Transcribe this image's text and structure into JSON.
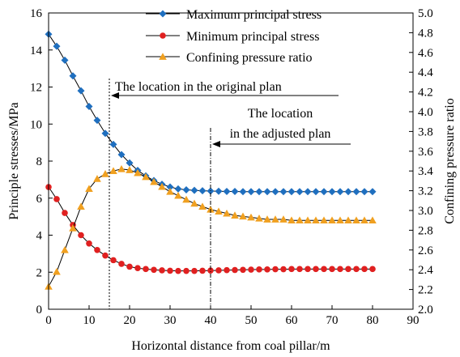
{
  "chart_data": {
    "type": "line",
    "xlabel": "Horizontal distance from coal pillar/m",
    "ylabel_left": "Principle stresses/MPa",
    "ylabel_right": "Confining pressure ratio",
    "xlim": [
      0,
      90
    ],
    "ylim_left": [
      0,
      16
    ],
    "ylim_right": [
      2.0,
      5.0
    ],
    "x_ticks": [
      0,
      10,
      20,
      30,
      40,
      50,
      60,
      70,
      80,
      90
    ],
    "y_left_ticks": [
      0,
      2,
      4,
      6,
      8,
      10,
      12,
      14,
      16
    ],
    "y_right_ticks": [
      "2.0",
      "2.2",
      "2.4",
      "2.6",
      "2.8",
      "3.0",
      "3.2",
      "3.4",
      "3.6",
      "3.8",
      "4.0",
      "4.2",
      "4.4",
      "4.6",
      "4.8",
      "5.0"
    ],
    "grid": false,
    "legend_position": "top",
    "x": [
      0,
      2,
      4,
      6,
      8,
      10,
      12,
      14,
      16,
      18,
      20,
      22,
      24,
      26,
      28,
      30,
      32,
      34,
      36,
      38,
      40,
      42,
      44,
      46,
      48,
      50,
      52,
      54,
      56,
      58,
      60,
      62,
      64,
      66,
      68,
      70,
      72,
      74,
      76,
      78,
      80
    ],
    "series": [
      {
        "name": "Maximum principal stress",
        "axis": "left",
        "color": "#1f6fbf",
        "marker": "diamond",
        "values": [
          14.85,
          14.2,
          13.45,
          12.6,
          11.8,
          10.95,
          10.2,
          9.5,
          8.9,
          8.35,
          7.9,
          7.5,
          7.2,
          6.95,
          6.75,
          6.6,
          6.5,
          6.45,
          6.42,
          6.4,
          6.38,
          6.37,
          6.36,
          6.36,
          6.35,
          6.35,
          6.35,
          6.35,
          6.35,
          6.35,
          6.35,
          6.35,
          6.35,
          6.35,
          6.35,
          6.35,
          6.35,
          6.35,
          6.35,
          6.35,
          6.35
        ]
      },
      {
        "name": "Minimum principal stress",
        "axis": "left",
        "color": "#e02020",
        "marker": "circle",
        "values": [
          6.6,
          5.95,
          5.2,
          4.55,
          4.0,
          3.55,
          3.2,
          2.9,
          2.65,
          2.45,
          2.3,
          2.22,
          2.17,
          2.13,
          2.1,
          2.08,
          2.07,
          2.07,
          2.07,
          2.08,
          2.09,
          2.1,
          2.11,
          2.12,
          2.13,
          2.14,
          2.15,
          2.15,
          2.16,
          2.16,
          2.17,
          2.17,
          2.17,
          2.17,
          2.17,
          2.17,
          2.17,
          2.17,
          2.17,
          2.17,
          2.17
        ]
      },
      {
        "name": "Confining pressure ratio",
        "axis": "right",
        "color": "#f0a020",
        "marker": "triangle",
        "values": [
          2.23,
          2.38,
          2.6,
          2.82,
          3.04,
          3.22,
          3.32,
          3.37,
          3.4,
          3.42,
          3.41,
          3.38,
          3.34,
          3.29,
          3.24,
          3.19,
          3.15,
          3.11,
          3.07,
          3.04,
          3.01,
          2.99,
          2.97,
          2.95,
          2.94,
          2.93,
          2.92,
          2.91,
          2.91,
          2.91,
          2.9,
          2.9,
          2.9,
          2.9,
          2.9,
          2.9,
          2.9,
          2.9,
          2.9,
          2.9,
          2.9
        ]
      }
    ],
    "annotations": [
      {
        "text": "The location in the original plan",
        "x": 15
      },
      {
        "text_line1": "The location",
        "text_line2": "in the adjusted plan",
        "x": 40
      }
    ]
  }
}
